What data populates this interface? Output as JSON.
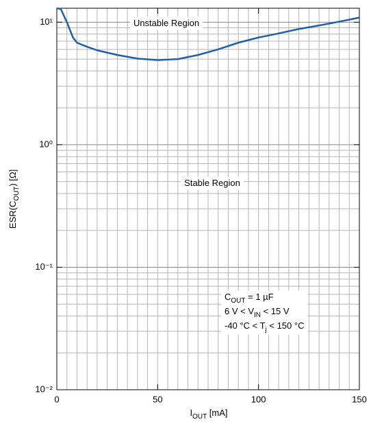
{
  "chart_data": {
    "type": "line",
    "x_label": [
      {
        "text": "I"
      },
      {
        "text": "OUT",
        "sub": true
      },
      {
        "text": " [mA]"
      }
    ],
    "y_label": [
      {
        "text": "ESR(C"
      },
      {
        "text": "OUT",
        "sub": true
      },
      {
        "text": ") [Ω]"
      }
    ],
    "xlim": [
      0,
      150
    ],
    "xticks": [
      0,
      50,
      100,
      150
    ],
    "x_minor_step": 5,
    "ylim": [
      0.01,
      13
    ],
    "log_y": true,
    "yticks": [
      {
        "value": 0.01,
        "label": "10⁻²"
      },
      {
        "value": 0.1,
        "label": "10⁻¹"
      },
      {
        "value": 1,
        "label": "10⁰"
      },
      {
        "value": 10,
        "label": "10¹"
      }
    ],
    "grid": true,
    "annotations": [
      [
        [
          {
            "text": "Unstable Region"
          }
        ]
      ],
      [
        [
          {
            "text": "Stable Region"
          }
        ]
      ],
      [
        [
          {
            "text": "C"
          },
          {
            "text": "OUT",
            "sub": true
          },
          {
            "text": " = 1 µF"
          }
        ],
        [
          {
            "text": "6 V < V"
          },
          {
            "text": "IN",
            "sub": true
          },
          {
            "text": " < 15 V"
          }
        ],
        [
          {
            "text": "-40 °C < T"
          },
          {
            "text": "j",
            "sub": true
          },
          {
            "text": " < 150 °C"
          }
        ]
      ]
    ],
    "series": [
      {
        "color": "#1f5fa8",
        "x": [
          0,
          2,
          5,
          8,
          10,
          15,
          20,
          30,
          40,
          50,
          60,
          70,
          80,
          90,
          100,
          110,
          120,
          130,
          140,
          150
        ],
        "values": [
          13,
          12.8,
          10,
          7.5,
          6.8,
          6.3,
          5.9,
          5.4,
          5.05,
          4.9,
          5.0,
          5.4,
          6.0,
          6.8,
          7.5,
          8.1,
          8.8,
          9.4,
          10.1,
          10.9
        ]
      }
    ]
  }
}
